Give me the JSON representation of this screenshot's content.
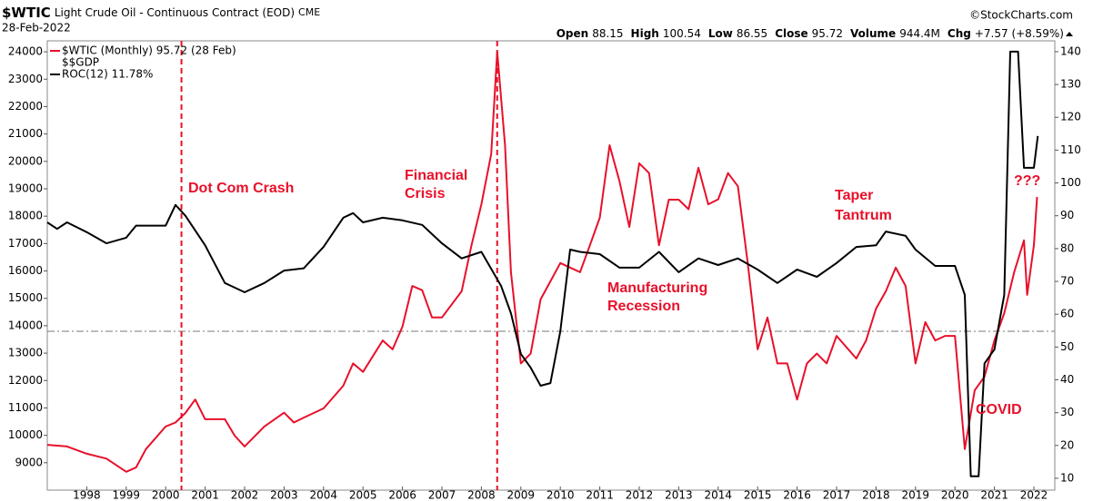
{
  "chart_data": {
    "type": "line",
    "symbol": "$WTIC",
    "title": "Light Crude Oil - Continuous Contract (EOD)",
    "exchange": "CME",
    "date": "28-Feb-2022",
    "source": "©StockCharts.com",
    "quote": [
      {
        "label": "Open",
        "value": "88.15"
      },
      {
        "label": "High",
        "value": "100.54"
      },
      {
        "label": "Low",
        "value": "86.55"
      },
      {
        "label": "Close",
        "value": "95.72"
      },
      {
        "label": "Volume",
        "value": "944.4M"
      },
      {
        "label": "Chg",
        "value": "+7.57 (+8.59%)"
      }
    ],
    "legend_extra": "$$GDP",
    "series": [
      {
        "name": "$WTIC (Monthly) 95.72 (28 Feb)",
        "color": "#e8102a",
        "axis": "y2",
        "x": [
          1997.0,
          1997.5,
          1998.0,
          1998.5,
          1999.0,
          1999.25,
          1999.5,
          2000.0,
          2000.25,
          2000.5,
          2000.75,
          2001.0,
          2001.5,
          2001.75,
          2002.0,
          2002.5,
          2003.0,
          2003.25,
          2003.5,
          2004.0,
          2004.5,
          2004.75,
          2005.0,
          2005.5,
          2005.75,
          2006.0,
          2006.25,
          2006.5,
          2006.75,
          2007.0,
          2007.5,
          2007.75,
          2008.0,
          2008.25,
          2008.4,
          2008.6,
          2008.75,
          2009.0,
          2009.25,
          2009.5,
          2009.75,
          2010.0,
          2010.5,
          2010.75,
          2011.0,
          2011.25,
          2011.5,
          2011.75,
          2012.0,
          2012.25,
          2012.5,
          2012.75,
          2013.0,
          2013.25,
          2013.5,
          2013.75,
          2014.0,
          2014.25,
          2014.5,
          2014.75,
          2015.0,
          2015.25,
          2015.5,
          2015.75,
          2016.0,
          2016.25,
          2016.5,
          2016.75,
          2017.0,
          2017.5,
          2017.75,
          2018.0,
          2018.25,
          2018.5,
          2018.75,
          2019.0,
          2019.25,
          2019.5,
          2019.75,
          2020.0,
          2020.25,
          2020.5,
          2020.75,
          2021.0,
          2021.25,
          2021.5,
          2021.75,
          2021.83,
          2022.0,
          2022.08
        ],
        "values": [
          20.2,
          19.7,
          17.5,
          16,
          12,
          13.3,
          18.9,
          25.8,
          27,
          29.9,
          34,
          28,
          28,
          23,
          19.7,
          25.8,
          30,
          27,
          28.5,
          31.3,
          38.2,
          45,
          42.4,
          52,
          49.3,
          56.2,
          68.6,
          67.3,
          59,
          59,
          67,
          81,
          93.5,
          108.8,
          140,
          111.5,
          72.8,
          45,
          48,
          64.5,
          70,
          75.6,
          72.8,
          81,
          89.4,
          111.5,
          100.5,
          86.6,
          106,
          103,
          81,
          94.9,
          94.9,
          92,
          104.6,
          93.5,
          95,
          103,
          99,
          75.6,
          49.3,
          59,
          45,
          45,
          34,
          45,
          48,
          45,
          53.4,
          46.5,
          52,
          61.7,
          67,
          74.2,
          68.6,
          45,
          57.6,
          52,
          53.4,
          53.4,
          18.9,
          36.8,
          41,
          52,
          60.3,
          72.8,
          82.5,
          65.9,
          81,
          95.72
        ]
      },
      {
        "name": "ROC(12) 11.78%",
        "color": "#000000",
        "axis": "y2",
        "x": [
          1997.0,
          1997.25,
          1997.5,
          1998.0,
          1998.5,
          1999.0,
          1999.25,
          2000.0,
          2000.25,
          2000.5,
          2001.0,
          2001.5,
          2002.0,
          2002.5,
          2003.0,
          2003.5,
          2004.0,
          2004.5,
          2004.75,
          2005.0,
          2005.5,
          2006.0,
          2006.5,
          2007.0,
          2007.5,
          2008.0,
          2008.5,
          2008.75,
          2009.0,
          2009.25,
          2009.5,
          2009.75,
          2010.0,
          2010.25,
          2010.5,
          2011.0,
          2011.5,
          2012.0,
          2012.5,
          2013.0,
          2013.5,
          2014.0,
          2014.5,
          2015.0,
          2015.5,
          2016.0,
          2016.5,
          2017.0,
          2017.5,
          2018.0,
          2018.25,
          2018.75,
          2019.0,
          2019.5,
          2020.0,
          2020.25,
          2020.4,
          2020.6,
          2020.75,
          2021.0,
          2021.25,
          2021.4,
          2021.6,
          2021.75,
          2022.0,
          2022.1
        ],
        "values": [
          88,
          86,
          88,
          85,
          81.6,
          83.3,
          87,
          87,
          93.3,
          90,
          81,
          69.5,
          66.7,
          69.5,
          73.3,
          74,
          80.5,
          89.4,
          90.8,
          88,
          89.4,
          88.6,
          87.2,
          81.6,
          77,
          79,
          68.6,
          60.3,
          47.9,
          43.7,
          38.2,
          39,
          54.8,
          79.7,
          79,
          78.3,
          74.2,
          74.2,
          79,
          72.8,
          77,
          75,
          77,
          73.6,
          69.5,
          73.6,
          71.4,
          75.6,
          80.5,
          81,
          85.2,
          83.9,
          79.7,
          74.7,
          74.7,
          65.9,
          10.6,
          10.6,
          45,
          49.3,
          65.9,
          140,
          140,
          104.6,
          104.6,
          114.3
        ]
      }
    ],
    "xlim": [
      1997.0,
      2022.53
    ],
    "xticks": [
      1998,
      1999,
      2000,
      2001,
      2002,
      2003,
      2004,
      2005,
      2006,
      2007,
      2008,
      2009,
      2010,
      2011,
      2012,
      2013,
      2014,
      2015,
      2016,
      2017,
      2018,
      2019,
      2020,
      2021,
      2022
    ],
    "ylim": [
      8000,
      24400
    ],
    "yticks": [
      9000,
      10000,
      11000,
      12000,
      13000,
      14000,
      15000,
      16000,
      17000,
      18000,
      19000,
      20000,
      21000,
      22000,
      23000,
      24000
    ],
    "y2lim": [
      6.4,
      143.3
    ],
    "y2ticks": [
      10,
      20,
      30,
      40,
      50,
      60,
      70,
      80,
      90,
      100,
      110,
      120,
      130,
      140
    ],
    "grid": false,
    "event_lines": [
      2000.4,
      2008.4
    ],
    "reference_line": 13800,
    "annotations": [
      "Dot Com Crash",
      "Financial",
      "Crisis",
      "Manufacturing",
      "Recession",
      "Taper",
      "Tantrum",
      "COVID",
      "???"
    ]
  }
}
